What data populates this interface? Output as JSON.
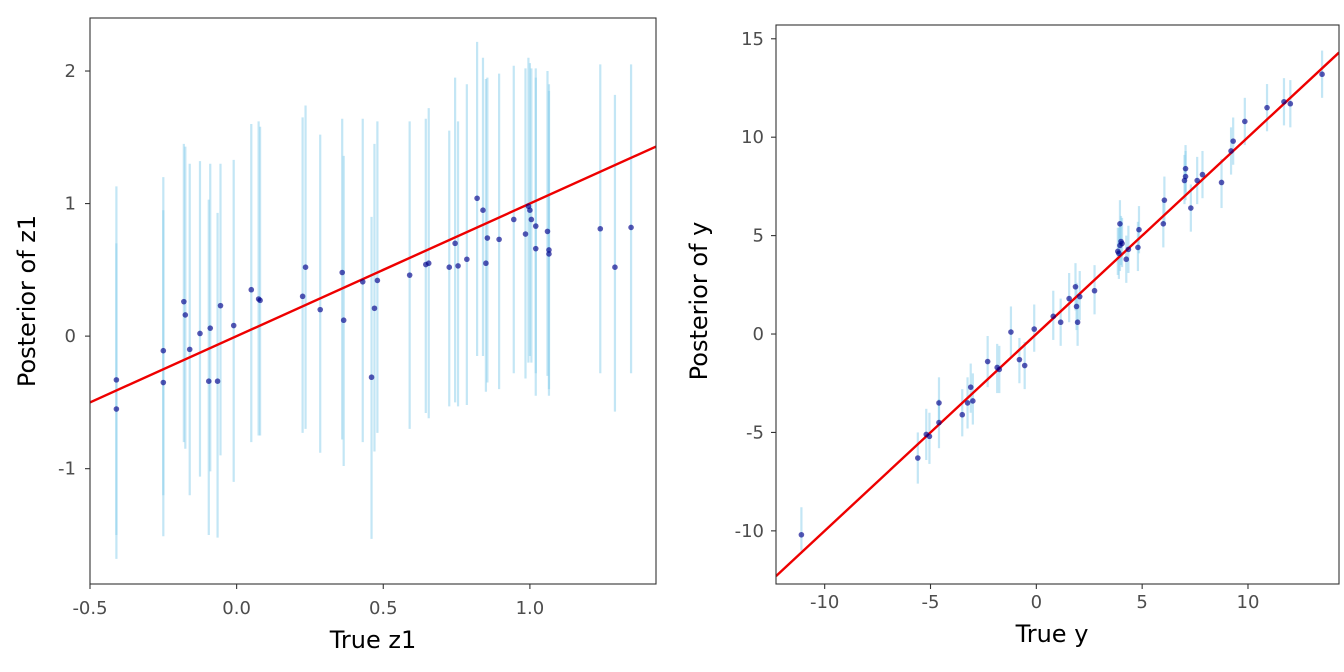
{
  "colors": {
    "errorbar": "#87CEEB",
    "point": "#00008B",
    "fit_line": "#EE0000"
  },
  "chart_data": [
    {
      "type": "scatter",
      "xlabel": "True z1",
      "ylabel": "Posterior of z1",
      "xlim": [
        -0.5,
        1.43
      ],
      "ylim": [
        -1.87,
        2.4
      ],
      "xticks": [
        -0.5,
        0.0,
        0.5,
        1.0
      ],
      "xtick_labels": [
        "-0.5",
        "0.0",
        "0.5",
        "1.0"
      ],
      "yticks": [
        -1,
        0,
        1,
        2
      ],
      "ytick_labels": [
        "-1",
        "0",
        "1",
        "2"
      ],
      "grid": false,
      "fit_line": {
        "x": [
          -0.5,
          1.43
        ],
        "y": [
          -0.5,
          1.43
        ]
      },
      "points": [
        {
          "x": -0.41,
          "y": -0.33,
          "lo": -1.5,
          "hi": 1.13
        },
        {
          "x": -0.41,
          "y": -0.55,
          "lo": -1.68,
          "hi": 0.7
        },
        {
          "x": -0.25,
          "y": -0.11,
          "lo": -1.2,
          "hi": 1.2
        },
        {
          "x": -0.25,
          "y": -0.35,
          "lo": -1.51,
          "hi": 0.95
        },
        {
          "x": -0.18,
          "y": 0.26,
          "lo": -0.8,
          "hi": 1.45
        },
        {
          "x": -0.175,
          "y": 0.16,
          "lo": -0.85,
          "hi": 1.43
        },
        {
          "x": -0.16,
          "y": -0.1,
          "lo": -1.2,
          "hi": 1.3
        },
        {
          "x": -0.125,
          "y": 0.02,
          "lo": -1.06,
          "hi": 1.32
        },
        {
          "x": -0.095,
          "y": -0.34,
          "lo": -1.5,
          "hi": 1.03
        },
        {
          "x": -0.09,
          "y": 0.06,
          "lo": -1.02,
          "hi": 1.3
        },
        {
          "x": -0.065,
          "y": -0.34,
          "lo": -1.52,
          "hi": 0.93
        },
        {
          "x": -0.055,
          "y": 0.23,
          "lo": -0.9,
          "hi": 1.3
        },
        {
          "x": -0.01,
          "y": 0.08,
          "lo": -1.1,
          "hi": 1.33
        },
        {
          "x": 0.05,
          "y": 0.35,
          "lo": -0.8,
          "hi": 1.6
        },
        {
          "x": 0.075,
          "y": 0.28,
          "lo": -0.75,
          "hi": 1.62
        },
        {
          "x": 0.08,
          "y": 0.27,
          "lo": -0.75,
          "hi": 1.58
        },
        {
          "x": 0.225,
          "y": 0.3,
          "lo": -0.73,
          "hi": 1.65
        },
        {
          "x": 0.235,
          "y": 0.52,
          "lo": -0.7,
          "hi": 1.74
        },
        {
          "x": 0.285,
          "y": 0.2,
          "lo": -0.88,
          "hi": 1.52
        },
        {
          "x": 0.36,
          "y": 0.48,
          "lo": -0.78,
          "hi": 1.64
        },
        {
          "x": 0.365,
          "y": 0.12,
          "lo": -0.98,
          "hi": 1.36
        },
        {
          "x": 0.43,
          "y": 0.41,
          "lo": -0.8,
          "hi": 1.64
        },
        {
          "x": 0.46,
          "y": -0.31,
          "lo": -1.53,
          "hi": 0.9
        },
        {
          "x": 0.47,
          "y": 0.21,
          "lo": -0.87,
          "hi": 1.45
        },
        {
          "x": 0.48,
          "y": 0.42,
          "lo": -0.73,
          "hi": 1.62
        },
        {
          "x": 0.59,
          "y": 0.46,
          "lo": -0.7,
          "hi": 1.62
        },
        {
          "x": 0.645,
          "y": 0.54,
          "lo": -0.58,
          "hi": 1.64
        },
        {
          "x": 0.655,
          "y": 0.55,
          "lo": -0.62,
          "hi": 1.72
        },
        {
          "x": 0.725,
          "y": 0.52,
          "lo": -0.53,
          "hi": 1.55
        },
        {
          "x": 0.745,
          "y": 0.7,
          "lo": -0.5,
          "hi": 1.95
        },
        {
          "x": 0.755,
          "y": 0.53,
          "lo": -0.53,
          "hi": 1.62
        },
        {
          "x": 0.785,
          "y": 0.58,
          "lo": -0.52,
          "hi": 1.9
        },
        {
          "x": 0.82,
          "y": 1.04,
          "lo": -0.15,
          "hi": 2.22
        },
        {
          "x": 0.84,
          "y": 0.95,
          "lo": -0.15,
          "hi": 2.1
        },
        {
          "x": 0.85,
          "y": 0.55,
          "lo": -0.42,
          "hi": 1.94
        },
        {
          "x": 0.855,
          "y": 0.74,
          "lo": -0.35,
          "hi": 1.95
        },
        {
          "x": 0.895,
          "y": 0.73,
          "lo": -0.4,
          "hi": 1.98
        },
        {
          "x": 0.945,
          "y": 0.88,
          "lo": -0.28,
          "hi": 2.04
        },
        {
          "x": 0.985,
          "y": 0.77,
          "lo": -0.32,
          "hi": 2.02
        },
        {
          "x": 0.995,
          "y": 0.98,
          "lo": -0.2,
          "hi": 2.1
        },
        {
          "x": 1.0,
          "y": 0.95,
          "lo": -0.15,
          "hi": 2.06
        },
        {
          "x": 1.005,
          "y": 0.88,
          "lo": -0.2,
          "hi": 2.02
        },
        {
          "x": 1.02,
          "y": 0.83,
          "lo": -0.28,
          "hi": 2.02
        },
        {
          "x": 1.02,
          "y": 0.66,
          "lo": -0.45,
          "hi": 1.95
        },
        {
          "x": 1.06,
          "y": 0.79,
          "lo": -0.3,
          "hi": 2.0
        },
        {
          "x": 1.065,
          "y": 0.62,
          "lo": -0.45,
          "hi": 1.85
        },
        {
          "x": 1.065,
          "y": 0.65,
          "lo": -0.4,
          "hi": 1.9
        },
        {
          "x": 1.24,
          "y": 0.81,
          "lo": -0.28,
          "hi": 2.05
        },
        {
          "x": 1.29,
          "y": 0.52,
          "lo": -0.57,
          "hi": 1.82
        },
        {
          "x": 1.345,
          "y": 0.82,
          "lo": -0.28,
          "hi": 2.05
        }
      ]
    },
    {
      "type": "scatter",
      "xlabel": "True y",
      "ylabel": "Posterior of y",
      "xlim": [
        -12.3,
        14.3
      ],
      "ylim": [
        -12.7,
        15.7
      ],
      "xticks": [
        -10,
        -5,
        0,
        5,
        10
      ],
      "xtick_labels": [
        "-10",
        "-5",
        "0",
        "5",
        "10"
      ],
      "yticks": [
        -10,
        -5,
        0,
        5,
        10,
        15
      ],
      "ytick_labels": [
        "-10",
        "-5",
        "0",
        "5",
        "10",
        "15"
      ],
      "grid": false,
      "fit_line": {
        "x": [
          -12.3,
          14.3
        ],
        "y": [
          -12.3,
          14.3
        ]
      },
      "points": [
        {
          "x": -11.1,
          "y": -10.2,
          "lo": -11.0,
          "hi": -8.8
        },
        {
          "x": -5.6,
          "y": -6.3,
          "lo": -7.6,
          "hi": -5.0
        },
        {
          "x": -5.2,
          "y": -5.1,
          "lo": -6.4,
          "hi": -3.8
        },
        {
          "x": -5.05,
          "y": -5.2,
          "lo": -6.6,
          "hi": -4.0
        },
        {
          "x": -4.6,
          "y": -3.5,
          "lo": -4.6,
          "hi": -2.2
        },
        {
          "x": -4.6,
          "y": -4.5,
          "lo": -5.8,
          "hi": -3.3
        },
        {
          "x": -3.5,
          "y": -4.1,
          "lo": -5.2,
          "hi": -2.8
        },
        {
          "x": -3.25,
          "y": -3.5,
          "lo": -4.8,
          "hi": -2.2
        },
        {
          "x": -3.1,
          "y": -2.7,
          "lo": -4.0,
          "hi": -1.5
        },
        {
          "x": -3.0,
          "y": -3.4,
          "lo": -4.6,
          "hi": -2.0
        },
        {
          "x": -2.3,
          "y": -1.4,
          "lo": -2.7,
          "hi": -0.1
        },
        {
          "x": -1.85,
          "y": -1.7,
          "lo": -3.0,
          "hi": -0.5
        },
        {
          "x": -1.75,
          "y": -1.8,
          "lo": -3.0,
          "hi": -0.6
        },
        {
          "x": -1.2,
          "y": 0.1,
          "lo": -1.2,
          "hi": 1.4
        },
        {
          "x": -0.8,
          "y": -1.3,
          "lo": -2.5,
          "hi": -0.2
        },
        {
          "x": -0.55,
          "y": -1.6,
          "lo": -2.8,
          "hi": -0.4
        },
        {
          "x": -0.1,
          "y": 0.25,
          "lo": -0.9,
          "hi": 1.5
        },
        {
          "x": 0.8,
          "y": 0.9,
          "lo": -0.3,
          "hi": 2.2
        },
        {
          "x": 1.15,
          "y": 0.6,
          "lo": -0.6,
          "hi": 1.8
        },
        {
          "x": 1.55,
          "y": 1.8,
          "lo": 0.6,
          "hi": 3.1
        },
        {
          "x": 1.85,
          "y": 2.4,
          "lo": 1.2,
          "hi": 3.6
        },
        {
          "x": 1.9,
          "y": 1.4,
          "lo": 0.2,
          "hi": 2.6
        },
        {
          "x": 1.95,
          "y": 0.6,
          "lo": -0.6,
          "hi": 1.8
        },
        {
          "x": 2.05,
          "y": 1.9,
          "lo": 0.7,
          "hi": 3.2
        },
        {
          "x": 2.75,
          "y": 2.2,
          "lo": 1.0,
          "hi": 3.5
        },
        {
          "x": 3.85,
          "y": 4.2,
          "lo": 3.0,
          "hi": 5.4
        },
        {
          "x": 3.9,
          "y": 4.1,
          "lo": 2.8,
          "hi": 5.4
        },
        {
          "x": 3.95,
          "y": 4.5,
          "lo": 3.2,
          "hi": 5.7
        },
        {
          "x": 3.95,
          "y": 5.6,
          "lo": 4.4,
          "hi": 6.8
        },
        {
          "x": 4.0,
          "y": 4.7,
          "lo": 3.5,
          "hi": 6.0
        },
        {
          "x": 4.05,
          "y": 4.6,
          "lo": 3.4,
          "hi": 5.9
        },
        {
          "x": 4.25,
          "y": 3.8,
          "lo": 2.6,
          "hi": 5.0
        },
        {
          "x": 4.35,
          "y": 4.3,
          "lo": 3.1,
          "hi": 5.5
        },
        {
          "x": 4.8,
          "y": 4.4,
          "lo": 3.2,
          "hi": 5.7
        },
        {
          "x": 4.85,
          "y": 5.3,
          "lo": 4.1,
          "hi": 6.5
        },
        {
          "x": 6.0,
          "y": 5.6,
          "lo": 4.4,
          "hi": 6.8
        },
        {
          "x": 6.05,
          "y": 6.8,
          "lo": 5.6,
          "hi": 8.0
        },
        {
          "x": 7.0,
          "y": 7.8,
          "lo": 6.6,
          "hi": 9.1
        },
        {
          "x": 7.05,
          "y": 8.0,
          "lo": 6.8,
          "hi": 9.3
        },
        {
          "x": 7.05,
          "y": 8.4,
          "lo": 7.2,
          "hi": 9.6
        },
        {
          "x": 7.3,
          "y": 6.4,
          "lo": 5.2,
          "hi": 7.6
        },
        {
          "x": 7.6,
          "y": 7.8,
          "lo": 6.6,
          "hi": 9.0
        },
        {
          "x": 7.85,
          "y": 8.1,
          "lo": 6.9,
          "hi": 9.3
        },
        {
          "x": 8.75,
          "y": 7.7,
          "lo": 6.4,
          "hi": 8.9
        },
        {
          "x": 9.2,
          "y": 9.3,
          "lo": 8.1,
          "hi": 10.5
        },
        {
          "x": 9.3,
          "y": 9.8,
          "lo": 8.6,
          "hi": 11.0
        },
        {
          "x": 9.85,
          "y": 10.8,
          "lo": 9.6,
          "hi": 12.0
        },
        {
          "x": 10.9,
          "y": 11.5,
          "lo": 10.3,
          "hi": 12.7
        },
        {
          "x": 11.7,
          "y": 11.8,
          "lo": 10.6,
          "hi": 13.0
        },
        {
          "x": 12.0,
          "y": 11.7,
          "lo": 10.5,
          "hi": 12.9
        },
        {
          "x": 13.5,
          "y": 13.2,
          "lo": 12.0,
          "hi": 14.4
        }
      ]
    }
  ]
}
